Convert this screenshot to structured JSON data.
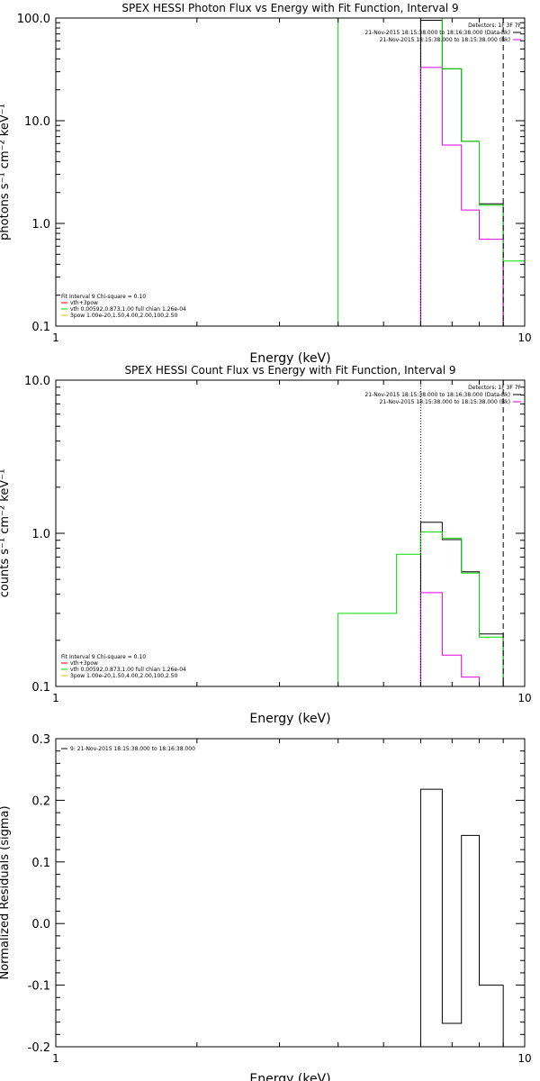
{
  "colors": {
    "background": "#ffffff",
    "axes": "#000000",
    "data_black": "#000000",
    "data_magenta": "#e000e0",
    "model_green": "#00dd00",
    "model_red": "#e00000",
    "model_yellow": "#e0c000"
  },
  "chart_data": [
    {
      "type": "line",
      "title": "SPEX HESSI Photon Flux vs Energy with Fit Function, Interval 9",
      "xlabel": "Energy (keV)",
      "ylabel": "photons s⁻¹ cm⁻² keV⁻¹",
      "xscale": "log",
      "yscale": "log",
      "xlim": [
        1,
        10
      ],
      "ylim": [
        0.1,
        100
      ],
      "x_ticks": [
        {
          "v": 1,
          "label": "1"
        },
        {
          "v": 10,
          "label": "10"
        }
      ],
      "y_ticks": [
        {
          "v": 0.1,
          "label": "0.1"
        },
        {
          "v": 1,
          "label": "1.0"
        },
        {
          "v": 10,
          "label": "10.0"
        },
        {
          "v": 100,
          "label": "100.0"
        }
      ],
      "legend_right": [
        {
          "text": "Detectors: 1F 3F 7F",
          "color": ""
        },
        {
          "text": "21-Nov-2015 18:15:38.000 to 18:16:38.000 (Data-Bk)",
          "color": "#000000"
        },
        {
          "text": "21-Nov-2015 18:15:38.000 to 18:15:38.000 (Bk)",
          "color": "#e000e0"
        }
      ],
      "legend_left": [
        {
          "text": "Fit Interval 9   Chi-square = 0.10",
          "color": ""
        },
        {
          "text": "vth+3pow",
          "color": "#e00000"
        },
        {
          "text": "vth 0.00592,0.873,1.00  full chian 1.26e-04",
          "color": "#00dd00"
        },
        {
          "text": "3pow 1.00e-20,1.50,4.00,2.00,100,2.50",
          "color": "#e0c000"
        }
      ],
      "vlines": [
        {
          "x": 6.0,
          "style": "dotted"
        },
        {
          "x": 9.0,
          "style": "dashed"
        }
      ],
      "series": [
        {
          "name": "(Data-Bk)",
          "color": "#000000",
          "kind": "step",
          "edges": [
            6.0,
            6.67,
            7.33,
            8.0,
            8.67,
            9.0
          ],
          "values": [
            95,
            32,
            6.3,
            1.55,
            1.55
          ]
        },
        {
          "name": "(Bk)",
          "color": "#e000e0",
          "kind": "step",
          "edges": [
            6.0,
            6.67,
            7.33,
            8.0,
            8.67,
            9.0
          ],
          "values": [
            33,
            5.8,
            1.35,
            0.7,
            0.7
          ]
        },
        {
          "name": "vth",
          "color": "#00dd00",
          "kind": "step",
          "edges": [
            4.0,
            6.0,
            6.67,
            7.33,
            8.0,
            8.67,
            9.0,
            10.0
          ],
          "values": [
            100,
            100,
            32,
            6.3,
            1.5,
            1.5,
            0.43
          ]
        }
      ]
    },
    {
      "type": "line",
      "title": "SPEX HESSI Count Flux vs Energy with Fit Function, Interval 9",
      "xlabel": "Energy (keV)",
      "ylabel": "counts s⁻¹ cm⁻² keV⁻¹",
      "xscale": "log",
      "yscale": "log",
      "xlim": [
        1,
        10
      ],
      "ylim": [
        0.1,
        10
      ],
      "x_ticks": [
        {
          "v": 1,
          "label": "1"
        },
        {
          "v": 10,
          "label": "10"
        }
      ],
      "y_ticks": [
        {
          "v": 0.1,
          "label": "0.1"
        },
        {
          "v": 1,
          "label": "1.0"
        },
        {
          "v": 10,
          "label": "10.0"
        }
      ],
      "legend_right": [
        {
          "text": "Detectors: 1F 3F 7F",
          "color": ""
        },
        {
          "text": "21-Nov-2015 18:15:38.000 to 18:16:38.000 (Data-Bk)",
          "color": "#000000"
        },
        {
          "text": "21-Nov-2015 18:15:38.000 to 18:15:38.000 (Bk)",
          "color": "#e000e0"
        }
      ],
      "legend_left": [
        {
          "text": "Fit Interval 9   Chi-square = 0.10",
          "color": ""
        },
        {
          "text": "vth+3pow",
          "color": "#e00000"
        },
        {
          "text": "vth 0.00592,0.873,1.00  full chian 1.26e-04",
          "color": "#00dd00"
        },
        {
          "text": "3pow 1.00e-20,1.50,4.00,2.00,100,2.50",
          "color": "#e0c000"
        }
      ],
      "vlines": [
        {
          "x": 6.0,
          "style": "dotted"
        },
        {
          "x": 9.0,
          "style": "dashed"
        }
      ],
      "series": [
        {
          "name": "(Data-Bk)",
          "color": "#000000",
          "kind": "step",
          "edges": [
            6.0,
            6.67,
            7.33,
            8.0,
            8.67,
            9.0
          ],
          "values": [
            1.18,
            0.91,
            0.56,
            0.22,
            0.22
          ]
        },
        {
          "name": "(Bk)",
          "color": "#e000e0",
          "kind": "step",
          "edges": [
            6.0,
            6.67,
            7.33,
            8.0,
            8.67,
            9.0
          ],
          "values": [
            0.41,
            0.16,
            0.115,
            0.1,
            0.1
          ]
        },
        {
          "name": "vth",
          "color": "#00dd00",
          "kind": "step",
          "edges": [
            4.0,
            4.67,
            5.33,
            6.0,
            6.67,
            7.33,
            8.0,
            8.67,
            9.0
          ],
          "values": [
            0.3,
            0.3,
            0.73,
            1.02,
            0.93,
            0.55,
            0.21,
            0.21
          ]
        }
      ]
    },
    {
      "type": "line",
      "title": "",
      "xlabel": "Energy (keV)",
      "ylabel": "Normalized Residuals (sigma)",
      "xscale": "log",
      "yscale": "linear",
      "xlim": [
        1,
        10
      ],
      "ylim": [
        -0.2,
        0.3
      ],
      "x_ticks": [
        {
          "v": 1,
          "label": "1"
        },
        {
          "v": 10,
          "label": "10"
        }
      ],
      "y_ticks": [
        {
          "v": -0.2,
          "label": "-0.2"
        },
        {
          "v": -0.1,
          "label": "-0.1"
        },
        {
          "v": 0,
          "label": "0.0"
        },
        {
          "v": 0.1,
          "label": "0.1"
        },
        {
          "v": 0.2,
          "label": "0.2"
        },
        {
          "v": 0.3,
          "label": "0.3"
        }
      ],
      "legend_right": [],
      "legend_left": [
        {
          "text": "9: 21-Nov-2015 18:15:38.000 to 18:16:38.000",
          "color": "#000000"
        }
      ],
      "vlines": [],
      "series": [
        {
          "name": "residuals",
          "color": "#000000",
          "kind": "step",
          "edges": [
            6.0,
            6.67,
            7.33,
            8.0,
            8.67,
            9.0
          ],
          "values": [
            0.218,
            -0.162,
            0.143,
            -0.1,
            -0.1
          ]
        }
      ]
    }
  ]
}
